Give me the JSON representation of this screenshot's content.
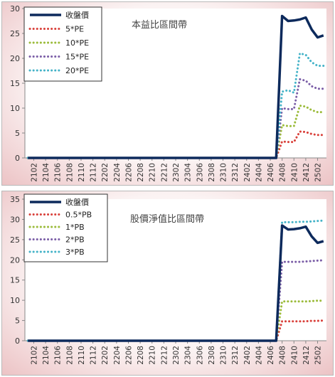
{
  "chart_data": [
    {
      "type": "line",
      "title": "本益比區間帶",
      "xlabel": "",
      "ylabel": "",
      "ylim": [
        0,
        30
      ],
      "y_ticks": [
        "0",
        "5",
        "10",
        "15",
        "20",
        "25",
        "30"
      ],
      "x_tick_labels": [
        "2102",
        "2104",
        "2106",
        "2108",
        "2110",
        "2112",
        "2202",
        "2204",
        "2206",
        "2208",
        "2210",
        "2212",
        "2302",
        "2304",
        "2306",
        "2308",
        "2310",
        "2312",
        "2402",
        "2404",
        "2406",
        "2408",
        "2410",
        "2412",
        "2502"
      ],
      "x": [
        "2101",
        "2102",
        "2103",
        "2104",
        "2105",
        "2106",
        "2107",
        "2108",
        "2109",
        "2110",
        "2111",
        "2112",
        "2201",
        "2202",
        "2203",
        "2204",
        "2205",
        "2206",
        "2207",
        "2208",
        "2209",
        "2210",
        "2211",
        "2212",
        "2301",
        "2302",
        "2303",
        "2304",
        "2305",
        "2306",
        "2307",
        "2308",
        "2309",
        "2310",
        "2311",
        "2312",
        "2401",
        "2402",
        "2403",
        "2404",
        "2405",
        "2406",
        "2407",
        "2408",
        "2409",
        "2410",
        "2411",
        "2412",
        "2501",
        "2502",
        "2503"
      ],
      "grid": false,
      "legend_position": "top-left",
      "series": [
        {
          "name": "收盤價",
          "color": "#0d2a5c",
          "style": "solid",
          "values": [
            0,
            0,
            0,
            0,
            0,
            0,
            0,
            0,
            0,
            0,
            0,
            0,
            0,
            0,
            0,
            0,
            0,
            0,
            0,
            0,
            0,
            0,
            0,
            0,
            0,
            0,
            0,
            0,
            0,
            0,
            0,
            0,
            0,
            0,
            0,
            0,
            0,
            0,
            0,
            0,
            0,
            0,
            0,
            28.5,
            27.5,
            27.6,
            27.8,
            28.2,
            25.8,
            24.2,
            24.6
          ]
        },
        {
          "name": "5*PE",
          "color": "#d9413b",
          "style": "dotted",
          "values": [
            0,
            0,
            0,
            0,
            0,
            0,
            0,
            0,
            0,
            0,
            0,
            0,
            0,
            0,
            0,
            0,
            0,
            0,
            0,
            0,
            0,
            0,
            0,
            0,
            0,
            0,
            0,
            0,
            0,
            0,
            0,
            0,
            0,
            0,
            0,
            0,
            0,
            0,
            0,
            0,
            0,
            0,
            0,
            3.3,
            3.2,
            3.2,
            5.3,
            5.2,
            4.8,
            4.6,
            4.6
          ]
        },
        {
          "name": "10*PE",
          "color": "#9bbb3a",
          "style": "dotted",
          "values": [
            0,
            0,
            0,
            0,
            0,
            0,
            0,
            0,
            0,
            0,
            0,
            0,
            0,
            0,
            0,
            0,
            0,
            0,
            0,
            0,
            0,
            0,
            0,
            0,
            0,
            0,
            0,
            0,
            0,
            0,
            0,
            0,
            0,
            0,
            0,
            0,
            0,
            0,
            0,
            0,
            0,
            0,
            0,
            6.6,
            6.4,
            6.4,
            10.5,
            10.3,
            9.6,
            9.2,
            9.2
          ]
        },
        {
          "name": "15*PE",
          "color": "#7b5ea7",
          "style": "dotted",
          "values": [
            0,
            0,
            0,
            0,
            0,
            0,
            0,
            0,
            0,
            0,
            0,
            0,
            0,
            0,
            0,
            0,
            0,
            0,
            0,
            0,
            0,
            0,
            0,
            0,
            0,
            0,
            0,
            0,
            0,
            0,
            0,
            0,
            0,
            0,
            0,
            0,
            0,
            0,
            0,
            0,
            0,
            0,
            0,
            10.0,
            9.8,
            9.8,
            15.8,
            15.5,
            14.4,
            13.9,
            13.9
          ]
        },
        {
          "name": "20*PE",
          "color": "#45b3c8",
          "style": "dotted",
          "values": [
            0,
            0,
            0,
            0,
            0,
            0,
            0,
            0,
            0,
            0,
            0,
            0,
            0,
            0,
            0,
            0,
            0,
            0,
            0,
            0,
            0,
            0,
            0,
            0,
            0,
            0,
            0,
            0,
            0,
            0,
            0,
            0,
            0,
            0,
            0,
            0,
            0,
            0,
            0,
            0,
            0,
            0,
            0,
            13.3,
            13.6,
            13.1,
            21.0,
            20.7,
            19.2,
            18.5,
            18.5
          ]
        }
      ]
    },
    {
      "type": "line",
      "title": "股價淨值比區間帶",
      "xlabel": "",
      "ylabel": "",
      "ylim": [
        0,
        35
      ],
      "y_ticks": [
        "0",
        "5",
        "10",
        "15",
        "20",
        "25",
        "30",
        "35"
      ],
      "x_tick_labels": [
        "2102",
        "2104",
        "2106",
        "2108",
        "2110",
        "2112",
        "2202",
        "2204",
        "2206",
        "2208",
        "2210",
        "2212",
        "2302",
        "2304",
        "2306",
        "2308",
        "2310",
        "2312",
        "2402",
        "2404",
        "2406",
        "2408",
        "2410",
        "2412",
        "2502"
      ],
      "x": [
        "2101",
        "2102",
        "2103",
        "2104",
        "2105",
        "2106",
        "2107",
        "2108",
        "2109",
        "2110",
        "2111",
        "2112",
        "2201",
        "2202",
        "2203",
        "2204",
        "2205",
        "2206",
        "2207",
        "2208",
        "2209",
        "2210",
        "2211",
        "2212",
        "2301",
        "2302",
        "2303",
        "2304",
        "2305",
        "2306",
        "2307",
        "2308",
        "2309",
        "2310",
        "2311",
        "2312",
        "2401",
        "2402",
        "2403",
        "2404",
        "2405",
        "2406",
        "2407",
        "2408",
        "2409",
        "2410",
        "2411",
        "2412",
        "2501",
        "2502",
        "2503"
      ],
      "grid": false,
      "legend_position": "top-left",
      "series": [
        {
          "name": "收盤價",
          "color": "#0d2a5c",
          "style": "solid",
          "values": [
            0,
            0,
            0,
            0,
            0,
            0,
            0,
            0,
            0,
            0,
            0,
            0,
            0,
            0,
            0,
            0,
            0,
            0,
            0,
            0,
            0,
            0,
            0,
            0,
            0,
            0,
            0,
            0,
            0,
            0,
            0,
            0,
            0,
            0,
            0,
            0,
            0,
            0,
            0,
            0,
            0,
            0,
            0,
            28.5,
            27.5,
            27.6,
            27.8,
            28.2,
            25.8,
            24.2,
            24.6
          ]
        },
        {
          "name": "0.5*PB",
          "color": "#d9413b",
          "style": "dotted",
          "values": [
            0,
            0,
            0,
            0,
            0,
            0,
            0,
            0,
            0,
            0,
            0,
            0,
            0,
            0,
            0,
            0,
            0,
            0,
            0,
            0,
            0,
            0,
            0,
            0,
            0,
            0,
            0,
            0,
            0,
            0,
            0,
            0,
            0,
            0,
            0,
            0,
            0,
            0,
            0,
            0,
            0,
            0,
            0,
            4.8,
            4.8,
            4.8,
            4.8,
            4.8,
            4.9,
            4.9,
            5.0
          ]
        },
        {
          "name": "1*PB",
          "color": "#9bbb3a",
          "style": "dotted",
          "values": [
            0,
            0,
            0,
            0,
            0,
            0,
            0,
            0,
            0,
            0,
            0,
            0,
            0,
            0,
            0,
            0,
            0,
            0,
            0,
            0,
            0,
            0,
            0,
            0,
            0,
            0,
            0,
            0,
            0,
            0,
            0,
            0,
            0,
            0,
            0,
            0,
            0,
            0,
            0,
            0,
            0,
            0,
            0,
            9.7,
            9.7,
            9.7,
            9.7,
            9.7,
            9.8,
            9.9,
            9.9
          ]
        },
        {
          "name": "2*PB",
          "color": "#7b5ea7",
          "style": "dotted",
          "values": [
            0,
            0,
            0,
            0,
            0,
            0,
            0,
            0,
            0,
            0,
            0,
            0,
            0,
            0,
            0,
            0,
            0,
            0,
            0,
            0,
            0,
            0,
            0,
            0,
            0,
            0,
            0,
            0,
            0,
            0,
            0,
            0,
            0,
            0,
            0,
            0,
            0,
            0,
            0,
            0,
            0,
            0,
            0,
            19.5,
            19.5,
            19.5,
            19.5,
            19.6,
            19.7,
            19.8,
            19.9
          ]
        },
        {
          "name": "3*PB",
          "color": "#45b3c8",
          "style": "dotted",
          "values": [
            0,
            0,
            0,
            0,
            0,
            0,
            0,
            0,
            0,
            0,
            0,
            0,
            0,
            0,
            0,
            0,
            0,
            0,
            0,
            0,
            0,
            0,
            0,
            0,
            0,
            0,
            0,
            0,
            0,
            0,
            0,
            0,
            0,
            0,
            0,
            0,
            0,
            0,
            0,
            0,
            0,
            0,
            0,
            29.3,
            29.3,
            29.3,
            29.4,
            29.4,
            29.5,
            29.6,
            29.7
          ]
        }
      ]
    }
  ]
}
